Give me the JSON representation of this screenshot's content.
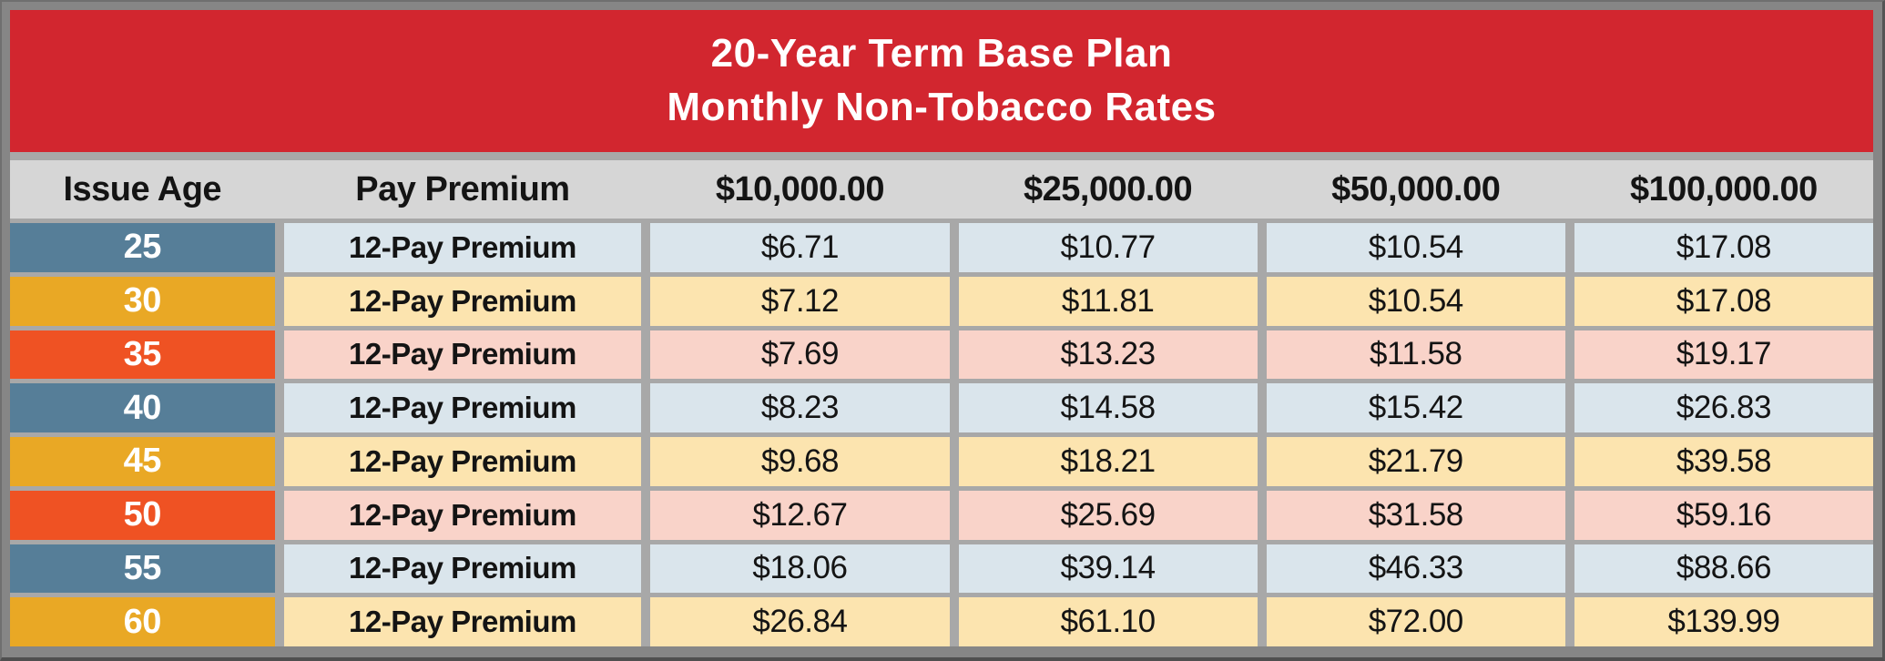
{
  "title": {
    "line1": "20-Year Term Base Plan",
    "line2": "Monthly Non-Tobacco Rates"
  },
  "table": {
    "columns": [
      "Issue Age",
      "Pay Premium",
      "$10,000.00",
      "$25,000.00",
      "$50,000.00",
      "$100,000.00"
    ],
    "rows": [
      {
        "age": "25",
        "label": "12-Pay Premium",
        "values": [
          "$6.71",
          "$10.77",
          "$10.54",
          "$17.08"
        ]
      },
      {
        "age": "30",
        "label": "12-Pay Premium",
        "values": [
          "$7.12",
          "$11.81",
          "$10.54",
          "$17.08"
        ]
      },
      {
        "age": "35",
        "label": "12-Pay Premium",
        "values": [
          "$7.69",
          "$13.23",
          "$11.58",
          "$19.17"
        ]
      },
      {
        "age": "40",
        "label": "12-Pay Premium",
        "values": [
          "$8.23",
          "$14.58",
          "$15.42",
          "$26.83"
        ]
      },
      {
        "age": "45",
        "label": "12-Pay Premium",
        "values": [
          "$9.68",
          "$18.21",
          "$21.79",
          "$39.58"
        ]
      },
      {
        "age": "50",
        "label": "12-Pay Premium",
        "values": [
          "$12.67",
          "$25.69",
          "$31.58",
          "$59.16"
        ]
      },
      {
        "age": "55",
        "label": "12-Pay Premium",
        "values": [
          "$18.06",
          "$39.14",
          "$46.33",
          "$88.66"
        ]
      },
      {
        "age": "60",
        "label": "12-Pay Premium",
        "values": [
          "$26.84",
          "$61.10",
          "$72.00",
          "$139.99"
        ]
      }
    ]
  },
  "colors": {
    "banner_red": "#d2262f",
    "age_steel_blue": "#567e98",
    "age_gold": "#e9a825",
    "age_orange_red": "#ef5223",
    "row_light_blue": "#dae5ec",
    "row_cream": "#fce4af",
    "row_pink": "#f9d3c9",
    "header_band_gray": "#d6d6d6",
    "divider_gray": "#a8a8a8",
    "frame_gray": "#868686"
  }
}
